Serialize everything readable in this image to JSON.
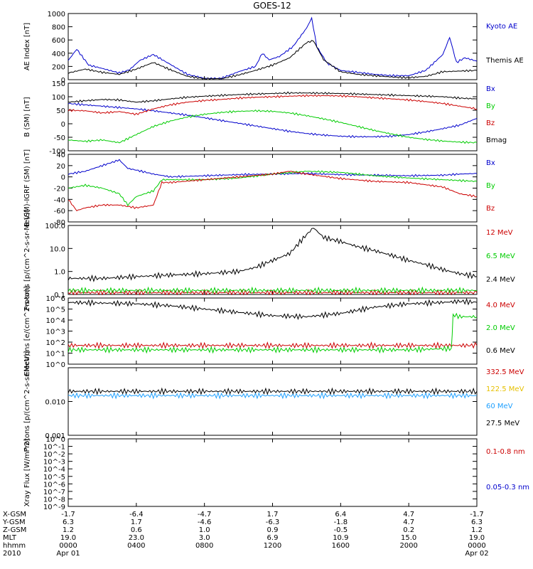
{
  "title": "GOES-12",
  "chart_data": [
    {
      "type": "line",
      "ylabel": "AE Index [nT]",
      "ylim": [
        0,
        1000
      ],
      "yticks": [
        "0",
        "200",
        "400",
        "600",
        "800",
        "1000"
      ],
      "ytick_values": [
        0,
        200,
        400,
        600,
        800,
        1000
      ],
      "series": [
        {
          "name": "Kyoto AE",
          "color": "#0000cc",
          "x": [
            0,
            0.5,
            1.2,
            2,
            3,
            3.6,
            4.2,
            5,
            6,
            7,
            8,
            9,
            10,
            11,
            11.4,
            11.8,
            12.4,
            13.2,
            14.0,
            14.3,
            14.6,
            15.2,
            16,
            17,
            18,
            19,
            20,
            21,
            22,
            22.4,
            22.8,
            23.3,
            24
          ],
          "y": [
            290,
            460,
            220,
            170,
            100,
            150,
            290,
            380,
            230,
            80,
            20,
            20,
            120,
            200,
            400,
            300,
            350,
            500,
            780,
            930,
            500,
            250,
            140,
            110,
            80,
            60,
            60,
            140,
            380,
            640,
            260,
            330,
            280
          ]
        },
        {
          "name": "Themis AE",
          "color": "#000000",
          "x": [
            0,
            1,
            2,
            3,
            4,
            5,
            6,
            7,
            8,
            9,
            10,
            11,
            12,
            13,
            14,
            14.4,
            15,
            16,
            17,
            18,
            19,
            20,
            21,
            22,
            23,
            24
          ],
          "y": [
            100,
            160,
            110,
            80,
            160,
            260,
            150,
            50,
            15,
            15,
            70,
            140,
            220,
            330,
            560,
            590,
            300,
            120,
            80,
            60,
            40,
            30,
            50,
            120,
            130,
            140
          ]
        }
      ]
    },
    {
      "type": "line",
      "ylabel": "B (SM) [nT]",
      "ylim": [
        -100,
        150
      ],
      "yticks": [
        "-100",
        "-50",
        "0",
        "50",
        "100",
        "150"
      ],
      "ytick_values": [
        -100,
        -50,
        0,
        50,
        100,
        150
      ],
      "series": [
        {
          "name": "Bx",
          "color": "#0000cc",
          "x": [
            0,
            1,
            2,
            3,
            4,
            5,
            6,
            7,
            8,
            9,
            10,
            11,
            12,
            13,
            14,
            15,
            16,
            17,
            18,
            19,
            20,
            21,
            22,
            23,
            24
          ],
          "y": [
            75,
            70,
            65,
            60,
            55,
            48,
            40,
            32,
            22,
            12,
            2,
            -8,
            -18,
            -28,
            -36,
            -42,
            -46,
            -48,
            -48,
            -46,
            -40,
            -30,
            -18,
            -5,
            20
          ]
        },
        {
          "name": "By",
          "color": "#00cc00",
          "x": [
            0,
            1,
            2,
            3,
            4,
            5,
            6,
            7,
            8,
            9,
            10,
            11,
            12,
            13,
            14,
            15,
            16,
            17,
            18,
            19,
            20,
            21,
            22,
            23,
            24
          ],
          "y": [
            -60,
            -65,
            -60,
            -70,
            -40,
            -10,
            10,
            25,
            35,
            42,
            46,
            48,
            46,
            40,
            30,
            18,
            5,
            -10,
            -25,
            -38,
            -50,
            -58,
            -64,
            -68,
            -70
          ]
        },
        {
          "name": "Bz",
          "color": "#cc0000",
          "x": [
            0,
            1,
            2,
            3,
            4,
            5,
            6,
            7,
            8,
            9,
            10,
            11,
            12,
            13,
            14,
            15,
            16,
            17,
            18,
            19,
            20,
            21,
            22,
            23,
            24
          ],
          "y": [
            50,
            48,
            40,
            45,
            35,
            55,
            70,
            80,
            86,
            90,
            95,
            98,
            100,
            102,
            104,
            104,
            103,
            100,
            96,
            92,
            88,
            82,
            75,
            65,
            55
          ]
        },
        {
          "name": "Bmag",
          "color": "#000000",
          "x": [
            0,
            1,
            2,
            3,
            4,
            5,
            6,
            7,
            8,
            9,
            10,
            11,
            12,
            13,
            14,
            15,
            16,
            17,
            18,
            19,
            20,
            21,
            22,
            23,
            24
          ],
          "y": [
            80,
            85,
            90,
            88,
            80,
            85,
            92,
            98,
            102,
            105,
            108,
            110,
            112,
            114,
            114,
            113,
            112,
            110,
            108,
            106,
            104,
            102,
            100,
            95,
            92
          ]
        }
      ]
    },
    {
      "type": "line",
      "ylabel": "B (SM)-IGRF (SM) [nT]",
      "ylim": [
        -80,
        40
      ],
      "yticks": [
        "-80",
        "-60",
        "-40",
        "-20",
        "0",
        "20",
        "40"
      ],
      "ytick_values": [
        -80,
        -60,
        -40,
        -20,
        0,
        20,
        40
      ],
      "series": [
        {
          "name": "Bx",
          "color": "#0000cc",
          "x": [
            0,
            1,
            2,
            3,
            3.5,
            4,
            5,
            6,
            8,
            10,
            12,
            14,
            16,
            18,
            20,
            22,
            23,
            24
          ],
          "y": [
            5,
            10,
            20,
            30,
            15,
            12,
            5,
            0,
            2,
            4,
            5,
            6,
            4,
            3,
            2,
            3,
            5,
            6
          ]
        },
        {
          "name": "By",
          "color": "#00cc00",
          "x": [
            0,
            1,
            2,
            3,
            3.5,
            4,
            5,
            5.5,
            6,
            8,
            10,
            12,
            14,
            16,
            18,
            20,
            22,
            24
          ],
          "y": [
            -20,
            -15,
            -20,
            -30,
            -50,
            -35,
            -25,
            -5,
            -5,
            -5,
            -2,
            5,
            10,
            8,
            2,
            -2,
            -5,
            -8
          ]
        },
        {
          "name": "Bz",
          "color": "#cc0000",
          "x": [
            0,
            0.5,
            1,
            2,
            3,
            4,
            5,
            5.5,
            6,
            8,
            10,
            12,
            13,
            14,
            16,
            18,
            20,
            22,
            23,
            24
          ],
          "y": [
            -40,
            -60,
            -55,
            -50,
            -50,
            -55,
            -50,
            -10,
            -10,
            -5,
            0,
            5,
            10,
            5,
            -3,
            -8,
            -10,
            -18,
            -30,
            -35
          ]
        }
      ]
    },
    {
      "type": "line",
      "log_scale": true,
      "ylabel": "Protons [p/(cm^2-s-sr-MeV)]",
      "ylim": [
        0.1,
        100
      ],
      "yticks": [
        "0.1",
        "1.0",
        "10.0",
        "100.0"
      ],
      "ytick_values": [
        0.1,
        1,
        10,
        100
      ],
      "series": [
        {
          "name": "12 MeV",
          "color": "#cc0000",
          "x": [
            0,
            24
          ],
          "y": [
            0.12,
            0.12
          ]
        },
        {
          "name": "6.5 MeV",
          "color": "#00cc00",
          "x": [
            0,
            24
          ],
          "y": [
            0.15,
            0.15
          ]
        },
        {
          "name": "2.4 MeV",
          "color": "#000000",
          "x": [
            0,
            2,
            4,
            6,
            8,
            10,
            11,
            12,
            13,
            14,
            14.4,
            15,
            16,
            17,
            18,
            19,
            20,
            21,
            22,
            23,
            24
          ],
          "y": [
            0.5,
            0.5,
            0.6,
            0.7,
            0.8,
            1.0,
            1.5,
            3,
            6,
            40,
            80,
            30,
            20,
            12,
            8,
            5,
            3,
            2,
            1.2,
            0.8,
            0.6
          ]
        }
      ]
    },
    {
      "type": "line",
      "log_scale": true,
      "ylabel": "Electrons [e/(cm^2-s-sr)]",
      "ylim": [
        1,
        1000000
      ],
      "yticks": [
        "10^0",
        "10^1",
        "10^2",
        "10^3",
        "10^4",
        "10^5",
        "10^6"
      ],
      "ytick_values": [
        1,
        10,
        100,
        1000,
        10000,
        100000,
        1000000
      ],
      "series": [
        {
          "name": "4.0 MeV",
          "color": "#cc0000",
          "x": [
            0,
            24
          ],
          "y": [
            50,
            50
          ]
        },
        {
          "name": "2.0 MeV",
          "color": "#00cc00",
          "x": [
            0,
            1,
            2,
            4,
            8,
            12,
            16,
            20,
            22,
            22.5,
            22.6,
            23,
            24
          ],
          "y": [
            20,
            20,
            20,
            20,
            20,
            20,
            20,
            20,
            25,
            25,
            30000,
            20000,
            20000
          ]
        },
        {
          "name": "0.6 MeV",
          "color": "#000000",
          "x": [
            0,
            2,
            4,
            6,
            8,
            10,
            12,
            14,
            16,
            18,
            20,
            22,
            23,
            24
          ],
          "y": [
            400000,
            350000,
            300000,
            200000,
            100000,
            50000,
            25000,
            20000,
            40000,
            150000,
            300000,
            400000,
            500000,
            400000
          ]
        }
      ]
    },
    {
      "type": "line",
      "log_scale": true,
      "ylabel": "Protons [p/(cm^2-s-sr-MeV)]",
      "ylim": [
        0.001,
        0.1
      ],
      "yticks": [
        "0.001",
        "0.010"
      ],
      "ytick_values": [
        0.001,
        0.01
      ],
      "series": [
        {
          "name": "332.5 MeV",
          "color": "#cc0000",
          "x": [],
          "y": []
        },
        {
          "name": "122.5 MeV",
          "color": "#ffd700",
          "x": [],
          "y": []
        },
        {
          "name": "60 MeV",
          "color": "#1fa0ff",
          "x": [
            0,
            24
          ],
          "y": [
            0.015,
            0.015
          ]
        },
        {
          "name": "27.5 MeV",
          "color": "#000000",
          "x": [
            0,
            24
          ],
          "y": [
            0.02,
            0.02
          ]
        }
      ]
    },
    {
      "type": "line",
      "log_scale": true,
      "ylabel": "Xray Flux [W/m^2]",
      "ylim": [
        1e-09,
        1
      ],
      "yticks": [
        "10^-9",
        "10^-8",
        "10^-7",
        "10^-6",
        "10^-5",
        "10^-4",
        "10^-3",
        "10^-2",
        "10^-1",
        "10^0"
      ],
      "ytick_values": [
        1e-09,
        1e-08,
        1e-07,
        1e-06,
        1e-05,
        0.0001,
        0.001,
        0.01,
        0.1,
        1
      ],
      "series": [
        {
          "name": "0.1-0.8 nm",
          "color": "#cc0000",
          "x": [],
          "y": []
        },
        {
          "name": "0.05-0.3 nm",
          "color": "#0000cc",
          "x": [],
          "y": []
        }
      ]
    }
  ],
  "xaxis": {
    "ticks_hours": [
      0,
      4,
      8,
      12,
      16,
      20,
      24
    ],
    "rows": [
      {
        "label": "X-GSM",
        "values": [
          "-1.7",
          "-6.4",
          "-4.7",
          "1.7",
          "6.4",
          "4.7",
          "-1.7"
        ]
      },
      {
        "label": "Y-GSM",
        "values": [
          "6.3",
          "1.7",
          "-4.6",
          "-6.3",
          "-1.8",
          "4.7",
          "6.3"
        ]
      },
      {
        "label": "Z-GSM",
        "values": [
          "1.2",
          "0.6",
          "1.0",
          "0.9",
          "-0.5",
          "0.2",
          "1.2"
        ]
      },
      {
        "label": "MLT",
        "values": [
          "19.0",
          "23.0",
          "3.0",
          "6.9",
          "10.9",
          "15.0",
          "19.0"
        ]
      },
      {
        "label": "hhmm",
        "values": [
          "0000",
          "0400",
          "0800",
          "1200",
          "1600",
          "2000",
          "0000"
        ]
      },
      {
        "label": "2010",
        "values": [
          "Apr 01",
          "",
          "",
          "",
          "",
          "",
          "Apr 02"
        ]
      }
    ]
  }
}
